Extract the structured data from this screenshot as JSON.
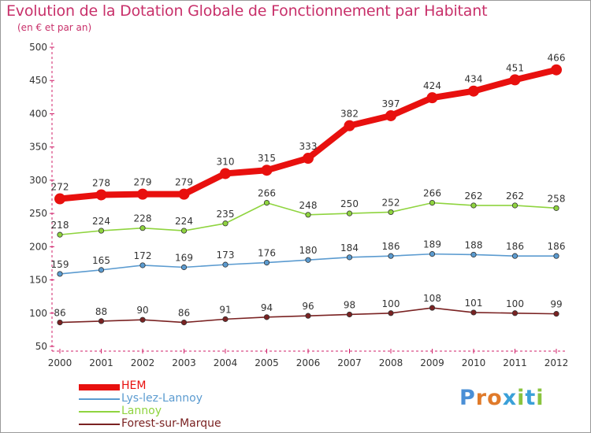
{
  "header": {
    "title": "Evolution de la Dotation Globale de Fonctionnement par Habitant",
    "subtitle": "(en € et par an)"
  },
  "logo": {
    "text": "Proxiti",
    "letters": [
      {
        "ch": "P",
        "color": "#4a8fd6"
      },
      {
        "ch": "r",
        "color": "#e07a2a"
      },
      {
        "ch": "o",
        "color": "#e07a2a"
      },
      {
        "ch": "x",
        "color": "#3aa0d8"
      },
      {
        "ch": "i",
        "color": "#8ac43f"
      },
      {
        "ch": "t",
        "color": "#3aa0d8"
      },
      {
        "ch": "i",
        "color": "#8ac43f"
      }
    ]
  },
  "chart_data": {
    "type": "line",
    "title": "Evolution de la Dotation Globale de Fonctionnement par Habitant",
    "subtitle": "(en € et par an)",
    "categories": [
      "2000",
      "2001",
      "2002",
      "2003",
      "2004",
      "2005",
      "2006",
      "2007",
      "2008",
      "2009",
      "2010",
      "2011",
      "2012"
    ],
    "ylim": [
      50,
      500
    ],
    "yticks": [
      50,
      100,
      150,
      200,
      250,
      300,
      350,
      400,
      450,
      500
    ],
    "grid": false,
    "legend_position": "bottom-left",
    "series": [
      {
        "name": "HEM",
        "color": "#e8100e",
        "values": [
          272,
          278,
          279,
          279,
          310,
          315,
          333,
          382,
          397,
          424,
          434,
          451,
          466
        ]
      },
      {
        "name": "Lys-lez-Lannoy",
        "color": "#5b9bd0",
        "values": [
          159,
          165,
          172,
          169,
          173,
          176,
          180,
          184,
          186,
          189,
          188,
          186,
          186
        ]
      },
      {
        "name": "Lannoy",
        "color": "#8fd43f",
        "values": [
          218,
          224,
          228,
          224,
          235,
          266,
          248,
          250,
          252,
          266,
          262,
          262,
          258
        ]
      },
      {
        "name": "Forest-sur-Marque",
        "color": "#7a2222",
        "values": [
          86,
          88,
          90,
          86,
          91,
          94,
          96,
          98,
          100,
          108,
          101,
          100,
          99
        ]
      }
    ]
  }
}
